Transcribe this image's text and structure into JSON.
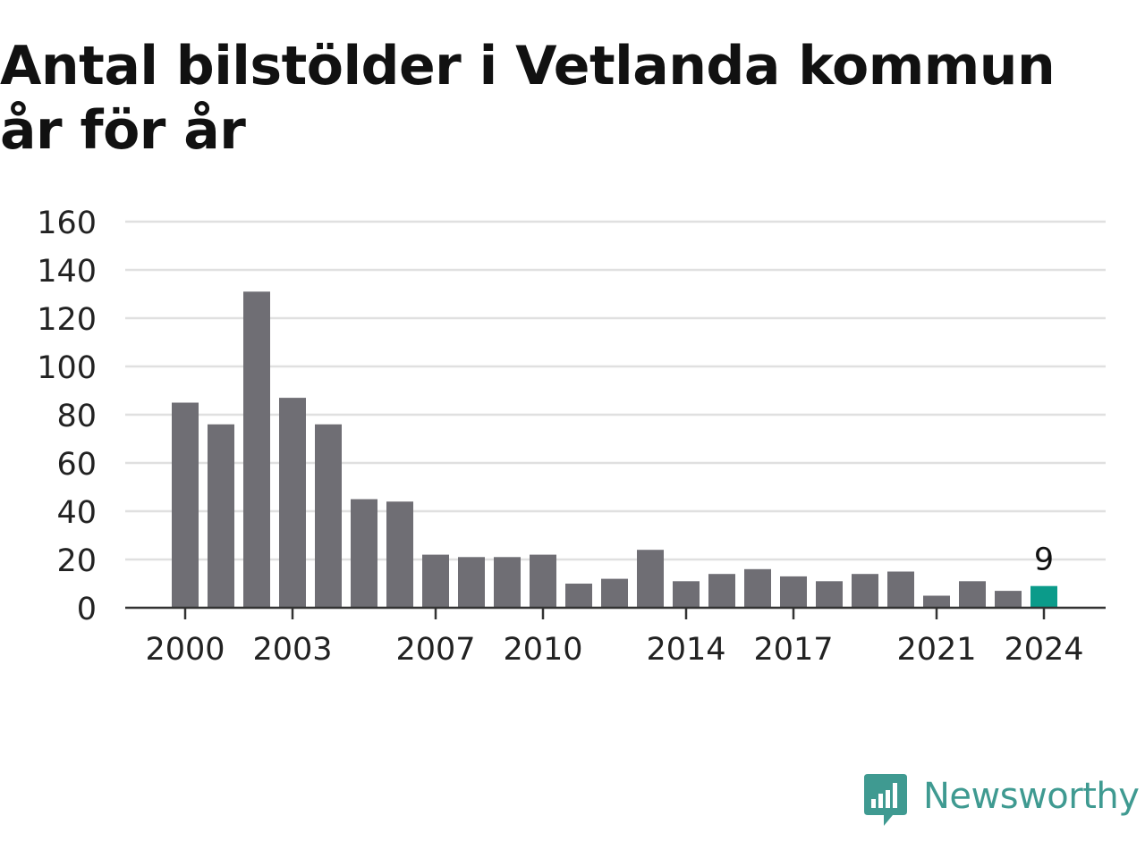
{
  "title": "Antal bilstölder i Vetlanda kommun år för år",
  "brand": {
    "name": "Newsworthy",
    "icon": "bar-chart-speech-bubble-icon",
    "color": "#3f9a91"
  },
  "colors": {
    "bar": "#6f6e74",
    "highlight": "#0b9b8a",
    "grid": "#e0e0e0",
    "axis": "#333333",
    "text": "#222222"
  },
  "chart_data": {
    "type": "bar",
    "title": "Antal bilstölder i Vetlanda kommun år för år",
    "xlabel": "",
    "ylabel": "",
    "categories": [
      2000,
      2001,
      2002,
      2003,
      2004,
      2005,
      2006,
      2007,
      2008,
      2009,
      2010,
      2011,
      2012,
      2013,
      2014,
      2015,
      2016,
      2017,
      2018,
      2019,
      2020,
      2021,
      2022,
      2023,
      2024
    ],
    "values": [
      85,
      76,
      131,
      87,
      76,
      45,
      44,
      22,
      21,
      21,
      22,
      10,
      12,
      24,
      11,
      14,
      16,
      13,
      11,
      14,
      15,
      5,
      11,
      7,
      9
    ],
    "x_tick_labels": [
      "2000",
      "2003",
      "2007",
      "2010",
      "2014",
      "2017",
      "2021",
      "2024"
    ],
    "y_ticks": [
      0,
      20,
      40,
      60,
      80,
      100,
      120,
      140,
      160
    ],
    "ylim": [
      0,
      160
    ],
    "grid": true,
    "legend": "none",
    "highlight": {
      "category": 2024,
      "label": "9"
    }
  }
}
